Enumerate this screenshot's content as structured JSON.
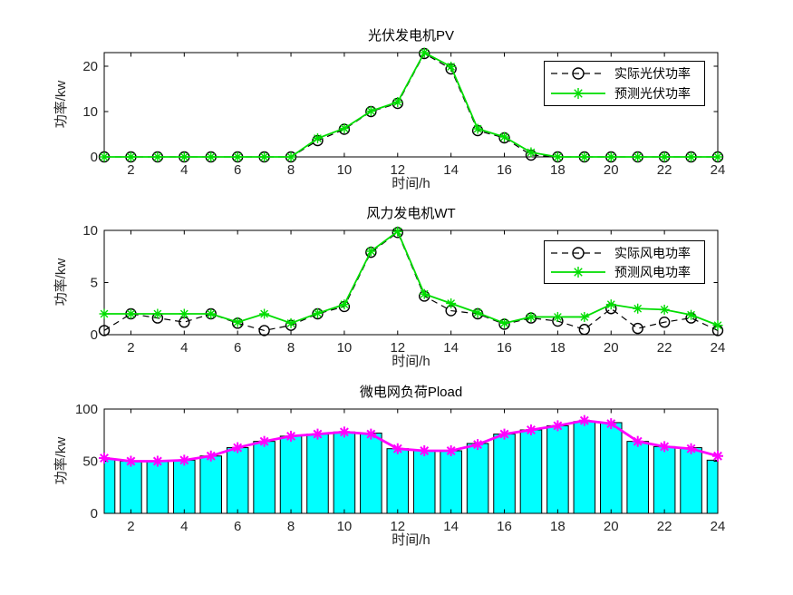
{
  "figure": {
    "background": "#ffffff",
    "axis_color": "#000000",
    "tick_label_color": "#262626"
  },
  "chart_data": [
    {
      "type": "line",
      "title": "光伏发电机PV",
      "xlabel": "时间/h",
      "ylabel": "功率/kw",
      "x": [
        1,
        2,
        3,
        4,
        5,
        6,
        7,
        8,
        9,
        10,
        11,
        12,
        13,
        14,
        15,
        16,
        17,
        18,
        19,
        20,
        21,
        22,
        23,
        24
      ],
      "xticks": [
        2,
        4,
        6,
        8,
        10,
        12,
        14,
        16,
        18,
        20,
        22,
        24
      ],
      "yticks": [
        0,
        10,
        20
      ],
      "xlim": [
        1,
        24
      ],
      "ylim": [
        0,
        23
      ],
      "grid": false,
      "legend_position": "top-right",
      "series": [
        {
          "name": "实际光伏功率",
          "color": "#000000",
          "line_style": "dashed",
          "marker": "circle",
          "values": [
            0,
            0,
            0,
            0,
            0,
            0,
            0,
            0,
            3.6,
            6.1,
            10,
            11.8,
            22.8,
            19.4,
            5.8,
            4.2,
            0.4,
            0,
            0,
            0,
            0,
            0,
            0,
            0
          ]
        },
        {
          "name": "预测光伏功率",
          "color": "#00dd00",
          "line_style": "solid",
          "marker": "asterisk",
          "values": [
            0,
            0,
            0,
            0,
            0,
            0,
            0,
            0,
            4.1,
            6.3,
            10.1,
            12.1,
            23,
            19.9,
            6.2,
            4.4,
            1,
            0,
            0,
            0,
            0,
            0,
            0,
            0
          ]
        }
      ]
    },
    {
      "type": "line",
      "title": "风力发电机WT",
      "xlabel": "时间/h",
      "ylabel": "功率/kw",
      "x": [
        1,
        2,
        3,
        4,
        5,
        6,
        7,
        8,
        9,
        10,
        11,
        12,
        13,
        14,
        15,
        16,
        17,
        18,
        19,
        20,
        21,
        22,
        23,
        24
      ],
      "xticks": [
        2,
        4,
        6,
        8,
        10,
        12,
        14,
        16,
        18,
        20,
        22,
        24
      ],
      "yticks": [
        0,
        5,
        10
      ],
      "xlim": [
        1,
        24
      ],
      "ylim": [
        0,
        10
      ],
      "grid": false,
      "legend_position": "top-right",
      "series": [
        {
          "name": "实际风电功率",
          "color": "#000000",
          "line_style": "dashed",
          "marker": "circle",
          "values": [
            0.4,
            2,
            1.6,
            1.2,
            2,
            1.1,
            0.4,
            0.9,
            2,
            2.7,
            7.9,
            9.8,
            3.7,
            2.3,
            2,
            1,
            1.6,
            1.3,
            0.5,
            2.5,
            0.6,
            1.2,
            1.6,
            0.4
          ]
        },
        {
          "name": "预测风电功率",
          "color": "#00dd00",
          "line_style": "solid",
          "marker": "asterisk",
          "values": [
            2,
            2,
            2,
            2,
            2,
            1.2,
            2,
            1.1,
            2.05,
            2.9,
            8,
            9.9,
            3.9,
            3,
            2.1,
            1.1,
            1.7,
            1.7,
            1.7,
            2.9,
            2.5,
            2.4,
            1.9,
            0.9
          ]
        }
      ]
    },
    {
      "type": "bar",
      "title": "微电网负荷Pload",
      "xlabel": "时间/h",
      "ylabel": "功率/kw",
      "x": [
        1,
        2,
        3,
        4,
        5,
        6,
        7,
        8,
        9,
        10,
        11,
        12,
        13,
        14,
        15,
        16,
        17,
        18,
        19,
        20,
        21,
        22,
        23,
        24
      ],
      "xticks": [
        2,
        4,
        6,
        8,
        10,
        12,
        14,
        16,
        18,
        20,
        22,
        24
      ],
      "yticks": [
        0,
        50,
        100
      ],
      "xlim": [
        1,
        24
      ],
      "ylim": [
        0,
        100
      ],
      "grid": false,
      "bar": {
        "fill": "#00ffff",
        "edge": "#000000",
        "bar_width": 0.8,
        "values": [
          52,
          50,
          50,
          51,
          55,
          63,
          69,
          74,
          76,
          78,
          77,
          62,
          60,
          60,
          67,
          76,
          80,
          84,
          88,
          87,
          69,
          64,
          63,
          51
        ]
      },
      "line": {
        "color": "#ff00ff",
        "line_style": "solid",
        "marker": "asterisk",
        "values": [
          53,
          50,
          50,
          51,
          55,
          63,
          69,
          74,
          76,
          78,
          76,
          62,
          60,
          60,
          66,
          76,
          80,
          84,
          89,
          86,
          69,
          64,
          62,
          55
        ]
      }
    }
  ]
}
